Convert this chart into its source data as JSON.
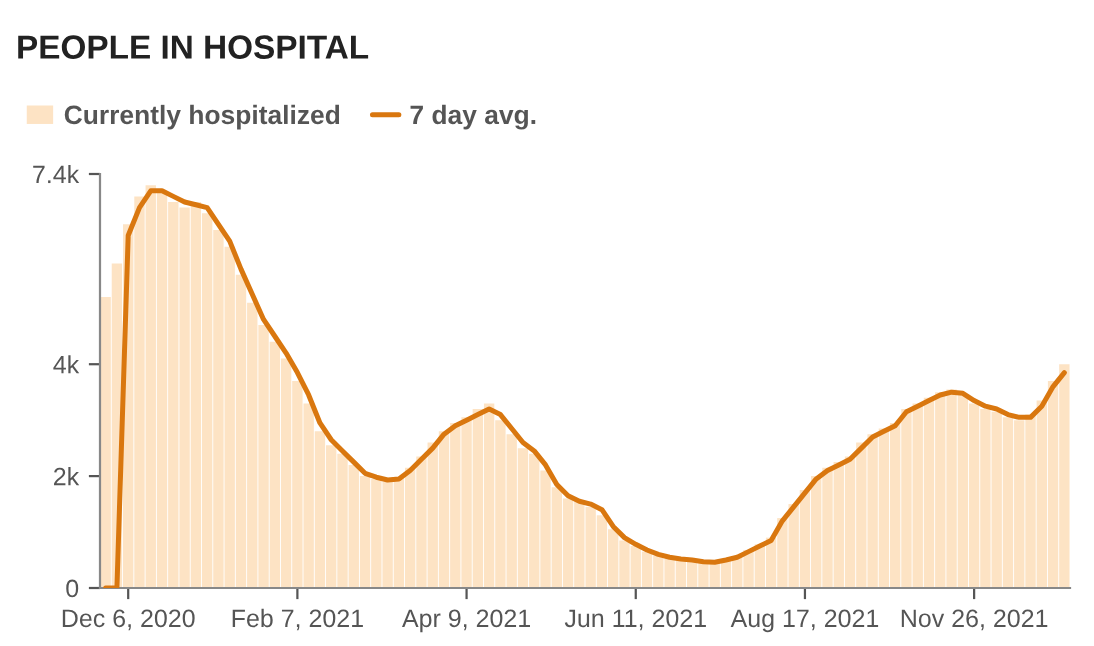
{
  "chart_data": {
    "type": "bar",
    "title": "PEOPLE IN HOSPITAL",
    "categories": [
      null,
      null,
      "Dec 6, 2020",
      null,
      null,
      null,
      null,
      null,
      null,
      null,
      null,
      null,
      null,
      null,
      null,
      null,
      null,
      "Feb 7, 2021",
      null,
      null,
      null,
      null,
      null,
      null,
      null,
      null,
      null,
      null,
      null,
      null,
      null,
      null,
      "Apr 9, 2021",
      null,
      null,
      null,
      null,
      null,
      null,
      null,
      null,
      null,
      null,
      null,
      null,
      null,
      null,
      "Jun 11, 2021",
      null,
      null,
      null,
      null,
      null,
      null,
      null,
      null,
      null,
      null,
      null,
      null,
      null,
      null,
      "Aug 17, 2021",
      null,
      null,
      null,
      null,
      null,
      null,
      null,
      null,
      null,
      null,
      null,
      null,
      null,
      null,
      "Nov 26, 2021",
      null,
      null,
      null,
      null,
      null,
      null,
      null,
      null
    ],
    "series": [
      {
        "name": "Currently hospitalized",
        "color": "#fde3c4",
        "values": [
          5200,
          5800,
          6500,
          7000,
          7200,
          7100,
          6900,
          6800,
          6900,
          6700,
          6400,
          6100,
          5600,
          5100,
          4700,
          4400,
          4100,
          3700,
          3300,
          2800,
          2550,
          2400,
          2200,
          2000,
          1950,
          1900,
          1980,
          2150,
          2350,
          2600,
          2800,
          2950,
          3050,
          3200,
          3300,
          3000,
          2750,
          2500,
          2400,
          2100,
          1800,
          1600,
          1550,
          1450,
          1300,
          1050,
          850,
          750,
          650,
          580,
          530,
          500,
          480,
          450,
          450,
          500,
          560,
          680,
          780,
          900,
          1250,
          1500,
          1750,
          2000,
          2150,
          2250,
          2350,
          2600,
          2750,
          2850,
          2950,
          3200,
          3300,
          3400,
          3500,
          3550,
          3450,
          3300,
          3200,
          3150,
          3050,
          3000,
          3100,
          3350,
          3700,
          4000
        ]
      },
      {
        "name": "7 day avg.",
        "type": "line",
        "color": "#d9770f",
        "values": [
          0,
          0,
          6300,
          6800,
          7100,
          7100,
          7000,
          6900,
          6850,
          6800,
          6500,
          6200,
          5700,
          5250,
          4800,
          4500,
          4200,
          3850,
          3450,
          2950,
          2650,
          2450,
          2250,
          2050,
          1980,
          1930,
          1950,
          2100,
          2300,
          2500,
          2750,
          2900,
          3000,
          3100,
          3200,
          3100,
          2850,
          2600,
          2450,
          2200,
          1850,
          1650,
          1550,
          1500,
          1400,
          1100,
          900,
          780,
          680,
          600,
          550,
          520,
          500,
          470,
          460,
          500,
          550,
          650,
          750,
          850,
          1200,
          1450,
          1700,
          1950,
          2100,
          2200,
          2300,
          2500,
          2700,
          2800,
          2900,
          3150,
          3250,
          3350,
          3450,
          3500,
          3480,
          3350,
          3250,
          3200,
          3100,
          3050,
          3050,
          3250,
          3600,
          3850
        ]
      }
    ],
    "ylim": [
      0,
      7400
    ],
    "yticks": [
      0,
      {
        "value": 2000,
        "label": "2k"
      },
      {
        "value": 4000,
        "label": "4k"
      },
      {
        "value": 7400,
        "label": "7.4k"
      }
    ],
    "grid": false,
    "legend": "top left"
  }
}
